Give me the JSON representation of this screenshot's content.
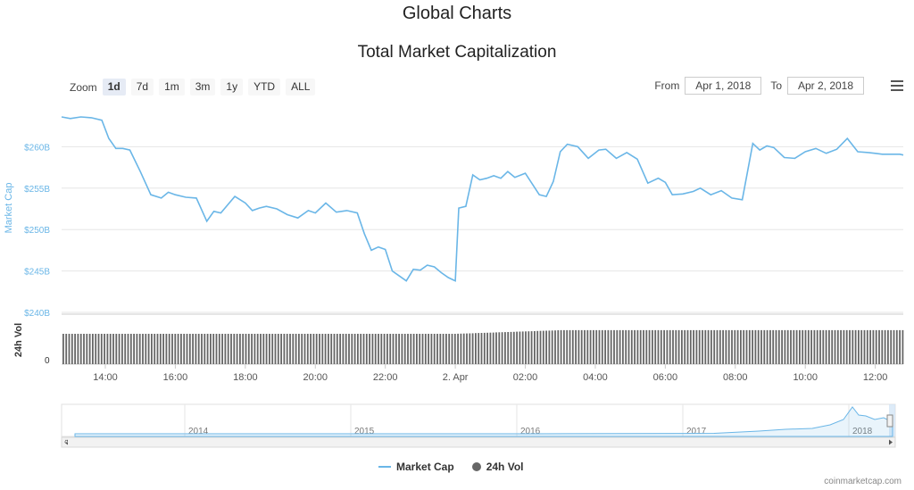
{
  "page": {
    "title": "Global Charts",
    "credit": "coinmarketcap.com"
  },
  "zoom": {
    "label": "Zoom",
    "options": [
      "1d",
      "7d",
      "1m",
      "3m",
      "1y",
      "YTD",
      "ALL"
    ],
    "active": "1d"
  },
  "range": {
    "from_label": "From",
    "from_value": "Apr 1, 2018",
    "to_label": "To",
    "to_value": "Apr 2, 2018"
  },
  "legend": {
    "market_cap": "Market Cap",
    "vol": "24h Vol"
  },
  "colors": {
    "market_cap": "#6ab6e7",
    "volume": "#666666",
    "grid": "#e6e6e6"
  },
  "chart_data": {
    "type": "line",
    "title": "Total Market Capitalization",
    "ylabel": "Market Cap",
    "ylabel_volume": "24h Vol",
    "y_ticks": [
      "$240B",
      "$245B",
      "$250B",
      "$255B",
      "$260B"
    ],
    "y_tick_values": [
      240,
      245,
      250,
      255,
      260
    ],
    "volume_tick": "0",
    "ylim": [
      240,
      265
    ],
    "x_ticks": [
      "14:00",
      "16:00",
      "18:00",
      "20:00",
      "22:00",
      "2. Apr",
      "02:00",
      "04:00",
      "06:00",
      "08:00",
      "10:00",
      "12:00"
    ],
    "x_tick_hours": [
      14,
      16,
      18,
      20,
      22,
      24,
      26,
      28,
      30,
      32,
      34,
      36
    ],
    "xlim_hours": [
      12.75,
      36.8
    ],
    "series": [
      {
        "name": "Market Cap",
        "unit": "B USD",
        "hours": [
          12.75,
          13.0,
          13.3,
          13.6,
          13.9,
          14.1,
          14.3,
          14.5,
          14.7,
          15.0,
          15.3,
          15.6,
          15.8,
          16.0,
          16.3,
          16.6,
          16.9,
          17.1,
          17.3,
          17.5,
          17.7,
          18.0,
          18.2,
          18.4,
          18.6,
          18.9,
          19.2,
          19.5,
          19.8,
          20.0,
          20.3,
          20.6,
          20.9,
          21.2,
          21.4,
          21.6,
          21.8,
          22.0,
          22.2,
          22.4,
          22.6,
          22.8,
          23.0,
          23.2,
          23.4,
          23.6,
          23.8,
          24.0,
          24.1,
          24.3,
          24.5,
          24.7,
          24.9,
          25.1,
          25.3,
          25.5,
          25.7,
          26.0,
          26.2,
          26.4,
          26.6,
          26.8,
          27.0,
          27.2,
          27.5,
          27.8,
          28.1,
          28.3,
          28.6,
          28.9,
          29.2,
          29.5,
          29.8,
          30.0,
          30.2,
          30.5,
          30.8,
          31.0,
          31.3,
          31.6,
          31.9,
          32.2,
          32.5,
          32.7,
          32.9,
          33.1,
          33.4,
          33.7,
          34.0,
          34.3,
          34.6,
          34.9,
          35.2,
          35.5,
          35.8,
          36.0,
          36.2,
          36.4,
          36.7,
          36.8
        ],
        "values": [
          263.6,
          263.4,
          263.6,
          263.5,
          263.2,
          261.0,
          259.8,
          259.8,
          259.6,
          257.0,
          254.2,
          253.8,
          254.5,
          254.2,
          253.9,
          253.8,
          251.0,
          252.2,
          252.0,
          253.0,
          254.0,
          253.2,
          252.3,
          252.6,
          252.8,
          252.5,
          251.8,
          251.4,
          252.3,
          252.0,
          253.2,
          252.1,
          252.3,
          252.0,
          249.5,
          247.5,
          247.9,
          247.6,
          245.0,
          244.4,
          243.8,
          245.2,
          245.1,
          245.7,
          245.5,
          244.8,
          244.2,
          243.8,
          252.6,
          252.8,
          256.6,
          256.0,
          256.2,
          256.5,
          256.2,
          257.0,
          256.3,
          256.8,
          255.5,
          254.2,
          254.0,
          255.8,
          259.4,
          260.3,
          260.0,
          258.6,
          259.6,
          259.7,
          258.6,
          259.3,
          258.5,
          255.6,
          256.2,
          255.7,
          254.2,
          254.3,
          254.6,
          255.0,
          254.2,
          254.7,
          253.8,
          253.6,
          260.4,
          259.6,
          260.1,
          259.9,
          258.7,
          258.6,
          259.4,
          259.8,
          259.2,
          259.7,
          261.0,
          259.4,
          259.3,
          259.2,
          259.1,
          259.1,
          259.1,
          259.0
        ]
      },
      {
        "name": "24h Vol",
        "hours_start": 12.75,
        "hours_end": 36.8,
        "note_levels": [
          1.0,
          0.97,
          1.12
        ],
        "level_hours": [
          12.75,
          24.0,
          27.0,
          36.8
        ]
      }
    ],
    "navigator": {
      "x_ticks": [
        "2014",
        "2015",
        "2016",
        "2017",
        "2018"
      ]
    }
  }
}
